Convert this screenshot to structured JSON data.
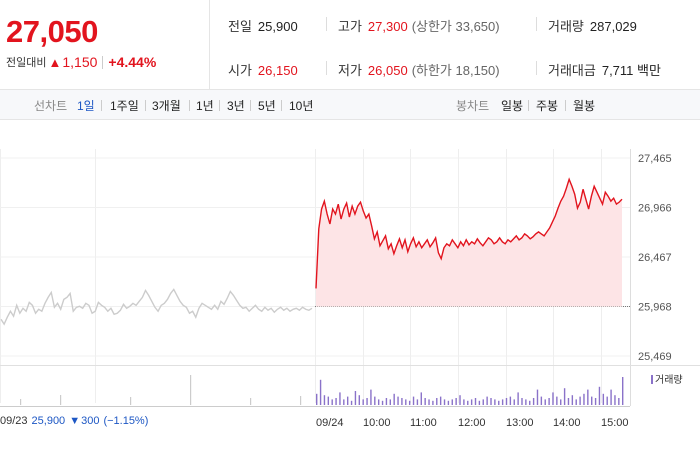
{
  "summary": {
    "current_price": "27,050",
    "change_label": "전일대비",
    "change_icon": "up-triangle-icon",
    "change_value": "1,150",
    "change_rate": "+4.44%",
    "prev_close_label": "전일",
    "prev_close": "25,900",
    "open_label": "시가",
    "open": "26,150",
    "high_label": "고가",
    "high": "27,300",
    "upper_limit": "(상한가 33,650)",
    "low_label": "저가",
    "low": "26,050",
    "lower_limit": "(하한가 18,150)",
    "volume_label": "거래량",
    "volume": "287,029",
    "value_label": "거래대금",
    "value": "7,711 백만"
  },
  "tabs": {
    "line_title": "선차트",
    "line": [
      "1일",
      "1주일",
      "3개월",
      "1년",
      "3년",
      "5년",
      "10년"
    ],
    "active": "1일",
    "candle_title": "봉차트",
    "candle": [
      "일봉",
      "주봉",
      "월봉"
    ]
  },
  "colors": {
    "up": "#e2141e",
    "down": "#1d57c4",
    "fill": "#fde4e6",
    "prev_line": "#cccccc",
    "volume": "#8a72c9"
  },
  "prev_info": {
    "date": "09/23",
    "close": "25,900",
    "change_icon": "down-triangle-icon",
    "change": "300",
    "rate": "(−1.15%)"
  },
  "volume_legend": "거래량",
  "chart_data": {
    "type": "line",
    "y_ticks": [
      "27,465",
      "26,966",
      "26,467",
      "25,968",
      "25,469"
    ],
    "ylim": [
      25469,
      27465
    ],
    "x_labels": [
      "09/23",
      "09/24",
      "10:00",
      "11:00",
      "12:00",
      "13:00",
      "14:00",
      "15:00"
    ],
    "reference_line": 25968,
    "series": [
      {
        "values": [
          26150,
          26750,
          26950,
          27030,
          26900,
          26800,
          26950,
          26900,
          27000,
          26850,
          26950,
          27010,
          26870,
          26980,
          26900,
          26980,
          27020,
          26930,
          26860,
          26900,
          26780,
          26650,
          26720,
          26580,
          26630,
          26680,
          26550,
          26600,
          26500,
          26580,
          26650,
          26560,
          26640,
          26520,
          26600,
          26660,
          26570,
          26620,
          26560,
          26600,
          26640,
          26570,
          26610,
          26660,
          26510,
          26450,
          26560,
          26600,
          26580,
          26640,
          26600,
          26560,
          26620,
          26580,
          26640,
          26590,
          26620,
          26600,
          26650,
          26610,
          26580,
          26620,
          26660,
          26640,
          26600,
          26620,
          26660,
          26620,
          26600,
          26640,
          26620,
          26650,
          26680,
          26640,
          26660,
          26700,
          26680,
          26650,
          26670,
          26700,
          26720,
          26700,
          26680,
          26720,
          26760,
          26820,
          26880,
          26960,
          27030,
          27080,
          27160,
          27250,
          27180,
          27100,
          26960,
          27020,
          27150,
          27050,
          26950,
          27080,
          27180,
          27120,
          27060,
          27000,
          27120,
          27080,
          27030,
          27060,
          27000,
          27020,
          27050
        ]
      },
      {
        "values": [
          25840,
          25790,
          25860,
          25920,
          25870,
          25980,
          25900,
          25950,
          25920,
          26010,
          25980,
          25900,
          25940,
          25920,
          26000,
          26060,
          26110,
          25960,
          26000,
          25940,
          26040,
          26060,
          26100,
          25920,
          25960,
          25970,
          25950,
          26000,
          25980,
          25900,
          25920,
          26010,
          25980,
          25960,
          25920,
          25950,
          25890,
          25900,
          25930,
          25990,
          25950,
          25970,
          26000,
          25980,
          26020,
          26060,
          26130,
          26080,
          26020,
          25960,
          25920,
          25980,
          26000,
          26040,
          26100,
          26140,
          26080,
          26020,
          25980,
          25960,
          25900,
          25920,
          25860,
          25950,
          26000,
          25980,
          25960,
          25940,
          25980,
          25940,
          26020,
          25990,
          26050,
          26120,
          26080,
          26030,
          25980,
          25950,
          25960,
          25920,
          25950,
          25980,
          25940,
          25920,
          25960,
          25930,
          25950,
          25910,
          25940,
          25960,
          25930,
          25950,
          25920,
          25940,
          25950,
          25930,
          25960,
          25940,
          25930,
          25950
        ]
      }
    ],
    "volume": [
      40,
      90,
      35,
      30,
      20,
      25,
      45,
      20,
      30,
      15,
      50,
      35,
      20,
      25,
      55,
      30,
      20,
      15,
      25,
      20,
      40,
      30,
      25,
      20,
      15,
      30,
      20,
      45,
      25,
      20,
      15,
      25,
      30,
      20,
      15,
      20,
      25,
      35,
      20,
      15,
      20,
      25,
      15,
      20,
      30,
      25,
      20,
      15,
      20,
      25,
      30,
      20,
      45,
      25,
      20,
      15,
      25,
      55,
      30,
      20,
      25,
      45,
      30,
      20,
      60,
      25,
      35,
      20,
      30,
      40,
      55,
      30,
      25,
      65,
      40,
      30,
      55,
      35,
      25,
      100
    ]
  }
}
